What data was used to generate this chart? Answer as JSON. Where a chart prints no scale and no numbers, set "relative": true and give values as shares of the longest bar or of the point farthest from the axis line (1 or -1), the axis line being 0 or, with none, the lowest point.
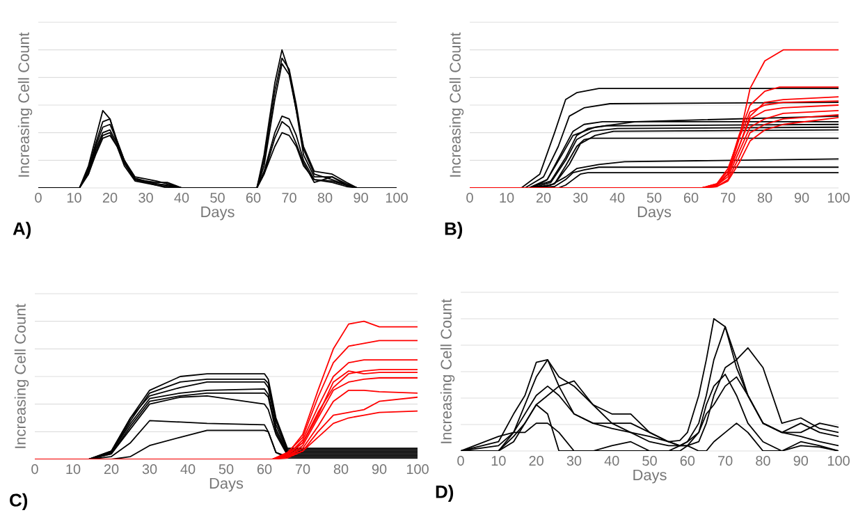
{
  "chart_data": [
    {
      "type": "line",
      "relative": true,
      "xlabel": "Days",
      "ylabel": "Increasing Cell Count",
      "annotations": [
        "A)"
      ],
      "xlim": [
        0,
        100
      ],
      "xticks": [
        0,
        10,
        20,
        30,
        40,
        50,
        60,
        70,
        80,
        90,
        100
      ],
      "grid": "y",
      "x": [
        0,
        11.5,
        14,
        16,
        18,
        20,
        22,
        24,
        27,
        33,
        36,
        40,
        61,
        63,
        66,
        68,
        70,
        72,
        74,
        77,
        82,
        86,
        89,
        100
      ],
      "series": [
        {
          "color": "#000000",
          "values": [
            0,
            0,
            0.16,
            0.36,
            0.56,
            0.5,
            0.32,
            0.18,
            0.06,
            0.04,
            0.04,
            0,
            0,
            0.24,
            0.76,
            1.0,
            0.84,
            0.56,
            0.24,
            0.08,
            0.08,
            0.02,
            0,
            0
          ]
        },
        {
          "color": "#000000",
          "values": [
            0,
            0,
            0.14,
            0.32,
            0.48,
            0.5,
            0.34,
            0.2,
            0.06,
            0.03,
            0.02,
            0,
            0,
            0.2,
            0.7,
            0.94,
            0.86,
            0.6,
            0.28,
            0.1,
            0.06,
            0.02,
            0,
            0
          ]
        },
        {
          "color": "#000000",
          "values": [
            0,
            0,
            0.12,
            0.3,
            0.44,
            0.46,
            0.34,
            0.2,
            0.08,
            0.05,
            0.03,
            0,
            0,
            0.16,
            0.64,
            0.9,
            0.82,
            0.56,
            0.3,
            0.12,
            0.1,
            0.04,
            0,
            0
          ]
        },
        {
          "color": "#000000",
          "values": [
            0,
            0,
            0.1,
            0.26,
            0.38,
            0.4,
            0.3,
            0.18,
            0.06,
            0.02,
            0.01,
            0,
            0,
            0.12,
            0.4,
            0.52,
            0.5,
            0.38,
            0.2,
            0.06,
            0.04,
            0.01,
            0,
            0
          ]
        },
        {
          "color": "#000000",
          "values": [
            0,
            0,
            0.1,
            0.24,
            0.36,
            0.38,
            0.3,
            0.16,
            0.05,
            0.02,
            0,
            0,
            0,
            0.1,
            0.36,
            0.48,
            0.44,
            0.32,
            0.18,
            0.04,
            0.08,
            0.03,
            0,
            0
          ]
        },
        {
          "color": "#000000",
          "values": [
            0,
            0,
            0.12,
            0.28,
            0.4,
            0.42,
            0.32,
            0.2,
            0.07,
            0.03,
            0.02,
            0,
            0,
            0.1,
            0.3,
            0.4,
            0.38,
            0.3,
            0.16,
            0.06,
            0.05,
            0.02,
            0,
            0
          ]
        }
      ]
    },
    {
      "type": "line",
      "relative": true,
      "xlabel": "Days",
      "ylabel": "Increasing Cell Count",
      "annotations": [
        "B)"
      ],
      "xlim": [
        0,
        100
      ],
      "xticks": [
        0,
        10,
        20,
        30,
        40,
        50,
        60,
        70,
        80,
        90,
        100
      ],
      "grid": "y",
      "series": [
        {
          "color": "#000000",
          "x": [
            0,
            14,
            19,
            23,
            26,
            29,
            35,
            100
          ],
          "values": [
            0,
            0,
            0.1,
            0.4,
            0.64,
            0.69,
            0.72,
            0.72
          ]
        },
        {
          "color": "#000000",
          "x": [
            0,
            15,
            20,
            24,
            27,
            31,
            38,
            100
          ],
          "values": [
            0,
            0,
            0.08,
            0.3,
            0.52,
            0.58,
            0.61,
            0.62
          ]
        },
        {
          "color": "#000000",
          "x": [
            0,
            16,
            21,
            25,
            28,
            34,
            45,
            100
          ],
          "values": [
            0,
            0,
            0.06,
            0.24,
            0.38,
            0.44,
            0.48,
            0.52
          ]
        },
        {
          "color": "#000000",
          "x": [
            0,
            17,
            21,
            25,
            28,
            31,
            36,
            100
          ],
          "values": [
            0,
            0,
            0.06,
            0.26,
            0.41,
            0.46,
            0.48,
            0.48
          ]
        },
        {
          "color": "#000000",
          "x": [
            0,
            16,
            22,
            26,
            29,
            32,
            37,
            100
          ],
          "values": [
            0,
            0,
            0.05,
            0.22,
            0.38,
            0.43,
            0.45,
            0.46
          ]
        },
        {
          "color": "#000000",
          "x": [
            0,
            17,
            22,
            26,
            29,
            33,
            40,
            100
          ],
          "values": [
            0,
            0,
            0.04,
            0.2,
            0.35,
            0.41,
            0.43,
            0.44
          ]
        },
        {
          "color": "#000000",
          "x": [
            0,
            18,
            23,
            27,
            30,
            34,
            39,
            100
          ],
          "values": [
            0,
            0,
            0.03,
            0.17,
            0.32,
            0.38,
            0.41,
            0.42
          ]
        },
        {
          "color": "#000000",
          "x": [
            0,
            18,
            23,
            26,
            29,
            31,
            33,
            100
          ],
          "values": [
            0,
            0,
            0.03,
            0.16,
            0.3,
            0.35,
            0.36,
            0.36
          ]
        },
        {
          "color": "#000000",
          "x": [
            0,
            17,
            22,
            26,
            29,
            35,
            42,
            100
          ],
          "values": [
            0,
            0,
            0.02,
            0.08,
            0.14,
            0.17,
            0.19,
            0.21
          ]
        },
        {
          "color": "#000000",
          "x": [
            0,
            18,
            23,
            26,
            28,
            31,
            35,
            100
          ],
          "values": [
            0,
            0,
            0.01,
            0.06,
            0.11,
            0.13,
            0.15,
            0.15
          ]
        },
        {
          "color": "#000000",
          "x": [
            0,
            22,
            24,
            26,
            28,
            30,
            32,
            100
          ],
          "values": [
            0,
            0,
            0,
            0.02,
            0.06,
            0.1,
            0.11,
            0.11
          ]
        },
        {
          "color": "#ff0000",
          "x": [
            0,
            63,
            67,
            70,
            73,
            76,
            80,
            85,
            100
          ],
          "values": [
            0,
            0,
            0.02,
            0.1,
            0.35,
            0.72,
            0.92,
            1.0,
            1.0
          ]
        },
        {
          "color": "#ff0000",
          "x": [
            0,
            63,
            67,
            70,
            73,
            76,
            80,
            84,
            100
          ],
          "values": [
            0,
            0,
            0.03,
            0.12,
            0.38,
            0.6,
            0.7,
            0.73,
            0.73
          ]
        },
        {
          "color": "#ff0000",
          "x": [
            0,
            63,
            67,
            70,
            73,
            76,
            80,
            85,
            100
          ],
          "values": [
            0,
            0,
            0.02,
            0.1,
            0.3,
            0.52,
            0.62,
            0.64,
            0.66
          ]
        },
        {
          "color": "#ff0000",
          "x": [
            0,
            63,
            67,
            70,
            73,
            76,
            80,
            85,
            100
          ],
          "values": [
            0,
            0,
            0.03,
            0.14,
            0.36,
            0.55,
            0.6,
            0.62,
            0.63
          ]
        },
        {
          "color": "#ff0000",
          "x": [
            0,
            63,
            67,
            70,
            73,
            76,
            80,
            85,
            100
          ],
          "values": [
            0,
            0,
            0.02,
            0.1,
            0.3,
            0.5,
            0.56,
            0.58,
            0.6
          ]
        },
        {
          "color": "#ff0000",
          "x": [
            0,
            63,
            67,
            70,
            73,
            76,
            80,
            85,
            100
          ],
          "values": [
            0,
            0,
            0.02,
            0.08,
            0.26,
            0.44,
            0.5,
            0.54,
            0.56
          ]
        },
        {
          "color": "#ff0000",
          "x": [
            0,
            63,
            67,
            70,
            73,
            76,
            80,
            85,
            100
          ],
          "values": [
            0,
            0,
            0.01,
            0.06,
            0.22,
            0.4,
            0.46,
            0.5,
            0.53
          ]
        },
        {
          "color": "#ff0000",
          "x": [
            0,
            63,
            67,
            70,
            73,
            76,
            80,
            85,
            100
          ],
          "values": [
            0,
            0,
            0.01,
            0.05,
            0.18,
            0.34,
            0.42,
            0.46,
            0.51
          ]
        }
      ]
    },
    {
      "type": "line",
      "relative": true,
      "xlabel": "Days",
      "ylabel": "Increasing Cell Count",
      "annotations": [
        "C)"
      ],
      "xlim": [
        0,
        100
      ],
      "xticks": [
        0,
        10,
        20,
        30,
        40,
        50,
        60,
        70,
        80,
        90,
        100
      ],
      "grid": "y",
      "x": [
        0,
        14,
        20,
        25,
        30,
        38,
        45,
        60,
        61,
        63,
        66,
        100
      ],
      "series": [
        {
          "color": "#000000",
          "values": [
            0,
            0,
            0.06,
            0.3,
            0.5,
            0.6,
            0.62,
            0.62,
            0.58,
            0.3,
            0.08,
            0.08
          ]
        },
        {
          "color": "#000000",
          "values": [
            0,
            0,
            0.05,
            0.28,
            0.48,
            0.56,
            0.58,
            0.58,
            0.55,
            0.28,
            0.07,
            0.07
          ]
        },
        {
          "color": "#000000",
          "values": [
            0,
            0,
            0.06,
            0.3,
            0.46,
            0.52,
            0.56,
            0.56,
            0.52,
            0.25,
            0.06,
            0.06
          ]
        },
        {
          "color": "#000000",
          "values": [
            0,
            0,
            0.05,
            0.26,
            0.44,
            0.48,
            0.5,
            0.51,
            0.47,
            0.22,
            0.05,
            0.05
          ]
        },
        {
          "color": "#000000",
          "values": [
            0,
            0,
            0.04,
            0.24,
            0.42,
            0.46,
            0.48,
            0.48,
            0.45,
            0.2,
            0.04,
            0.04
          ]
        },
        {
          "color": "#000000",
          "values": [
            0,
            0,
            0.04,
            0.22,
            0.4,
            0.45,
            0.46,
            0.4,
            0.36,
            0.18,
            0.03,
            0.03
          ]
        },
        {
          "color": "#000000",
          "values": [
            0,
            0,
            0.02,
            0.12,
            0.28,
            0.27,
            0.26,
            0.25,
            0.2,
            0.05,
            0.02,
            0.02
          ]
        },
        {
          "color": "#000000",
          "values": [
            0,
            0,
            0,
            0.02,
            0.1,
            0.16,
            0.21,
            0.21,
            0.2,
            0.05,
            0.01,
            0.01
          ]
        },
        {
          "color": "#ff0000",
          "x": [
            0,
            62,
            66,
            70,
            74,
            78,
            82,
            86,
            90,
            100
          ],
          "values": [
            0,
            0,
            0.04,
            0.18,
            0.5,
            0.8,
            0.98,
            1.0,
            0.96,
            0.96
          ]
        },
        {
          "color": "#ff0000",
          "x": [
            0,
            62,
            66,
            70,
            74,
            78,
            82,
            86,
            90,
            100
          ],
          "values": [
            0,
            0,
            0.05,
            0.16,
            0.45,
            0.7,
            0.82,
            0.84,
            0.86,
            0.86
          ]
        },
        {
          "color": "#ff0000",
          "x": [
            0,
            62,
            66,
            70,
            74,
            78,
            82,
            86,
            90,
            100
          ],
          "values": [
            0,
            0,
            0.03,
            0.14,
            0.38,
            0.6,
            0.7,
            0.72,
            0.72,
            0.72
          ]
        },
        {
          "color": "#ff0000",
          "x": [
            0,
            62,
            66,
            70,
            74,
            78,
            82,
            86,
            90,
            100
          ],
          "values": [
            0,
            0,
            0.04,
            0.12,
            0.34,
            0.52,
            0.62,
            0.64,
            0.65,
            0.65
          ]
        },
        {
          "color": "#ff0000",
          "x": [
            0,
            62,
            66,
            70,
            74,
            78,
            82,
            86,
            90,
            100
          ],
          "values": [
            0,
            0,
            0.03,
            0.12,
            0.32,
            0.56,
            0.64,
            0.62,
            0.63,
            0.63
          ]
        },
        {
          "color": "#ff0000",
          "x": [
            0,
            62,
            66,
            70,
            74,
            78,
            82,
            86,
            90,
            100
          ],
          "values": [
            0,
            0,
            0.02,
            0.1,
            0.3,
            0.5,
            0.56,
            0.58,
            0.59,
            0.59
          ]
        },
        {
          "color": "#ff0000",
          "x": [
            0,
            62,
            66,
            70,
            74,
            78,
            82,
            86,
            90,
            100
          ],
          "values": [
            0,
            0,
            0.02,
            0.08,
            0.24,
            0.42,
            0.5,
            0.5,
            0.49,
            0.48
          ]
        },
        {
          "color": "#ff0000",
          "x": [
            0,
            62,
            66,
            70,
            74,
            78,
            82,
            86,
            90,
            100
          ],
          "values": [
            0,
            0,
            0.02,
            0.06,
            0.2,
            0.32,
            0.34,
            0.36,
            0.42,
            0.45
          ]
        },
        {
          "color": "#ff0000",
          "x": [
            0,
            62,
            66,
            70,
            74,
            78,
            82,
            86,
            90,
            100
          ],
          "values": [
            0,
            0,
            0.01,
            0.06,
            0.16,
            0.26,
            0.3,
            0.32,
            0.34,
            0.35
          ]
        }
      ]
    },
    {
      "type": "line",
      "relative": true,
      "xlabel": "Days",
      "ylabel": "Increasing Cell Count",
      "annotations": [
        "D)"
      ],
      "xlim": [
        0,
        100
      ],
      "xticks": [
        0,
        10,
        20,
        30,
        40,
        50,
        60,
        70,
        80,
        90,
        100
      ],
      "grid": "y",
      "x": [
        0,
        10,
        14,
        17,
        20,
        23,
        26,
        30,
        35,
        40,
        45,
        50,
        55,
        58,
        60,
        63,
        65,
        67,
        70,
        73,
        76,
        80,
        85,
        90,
        95,
        100
      ],
      "series": [
        {
          "color": "#000000",
          "values": [
            0,
            0.07,
            0.28,
            0.42,
            0.67,
            0.69,
            0.49,
            0.28,
            0.21,
            0.17,
            0.14,
            0.11,
            0.07,
            0.08,
            0.14,
            0.42,
            0.69,
            1.0,
            0.94,
            0.63,
            0.42,
            0.21,
            0.14,
            0.11,
            0.07,
            0.04
          ]
        },
        {
          "color": "#000000",
          "values": [
            0,
            0,
            0.14,
            0.35,
            0.56,
            0.69,
            0.56,
            0.49,
            0.35,
            0.21,
            0.21,
            0.14,
            0.07,
            0.04,
            0.04,
            0.07,
            0.21,
            0.42,
            0.63,
            0.69,
            0.78,
            0.63,
            0.21,
            0.25,
            0.17,
            0.14
          ]
        },
        {
          "color": "#000000",
          "values": [
            0,
            0.04,
            0.14,
            0.28,
            0.42,
            0.49,
            0.42,
            0.28,
            0.21,
            0.21,
            0.14,
            0.07,
            0.04,
            0.04,
            0.07,
            0.21,
            0.42,
            0.69,
            0.94,
            0.69,
            0.42,
            0.21,
            0.14,
            0.21,
            0.14,
            0.11
          ]
        },
        {
          "color": "#000000",
          "values": [
            0,
            0,
            0.07,
            0.21,
            0.35,
            0.28,
            0,
            0,
            0,
            0.04,
            0.07,
            0,
            0,
            0,
            0.04,
            0.14,
            0.35,
            0.49,
            0.58,
            0.42,
            0.21,
            0.07,
            0,
            0.07,
            0.04,
            0
          ]
        },
        {
          "color": "#000000",
          "values": [
            0,
            0,
            0.11,
            0.21,
            0.35,
            0.42,
            0.49,
            0.53,
            0.35,
            0.28,
            0.28,
            0.14,
            0.07,
            0.04,
            0.07,
            0.14,
            0.28,
            0.35,
            0.49,
            0.56,
            0.42,
            0.21,
            0.14,
            0.14,
            0.21,
            0.18
          ]
        },
        {
          "color": "#000000",
          "values": [
            0,
            0.11,
            0.14,
            0.14,
            0.21,
            0.21,
            0.14,
            0,
            0,
            0,
            0,
            0,
            0,
            0.04,
            0.04,
            0,
            0,
            0.07,
            0.14,
            0.21,
            0.14,
            0,
            0,
            0.04,
            0.03,
            0
          ]
        }
      ]
    }
  ]
}
